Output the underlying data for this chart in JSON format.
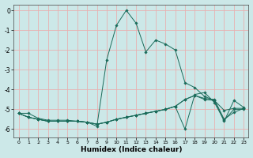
{
  "title": "",
  "xlabel": "Humidex (Indice chaleur)",
  "ylabel": "",
  "bg_color": "#cce8e8",
  "line_color": "#1a6b5a",
  "grid_color": "#e8b0b0",
  "xlim": [
    -0.5,
    23.5
  ],
  "ylim": [
    -6.4,
    0.3
  ],
  "yticks": [
    0,
    -1,
    -2,
    -3,
    -4,
    -5,
    -6
  ],
  "xticks": [
    0,
    1,
    2,
    3,
    4,
    5,
    6,
    7,
    8,
    9,
    10,
    11,
    12,
    13,
    14,
    15,
    16,
    17,
    18,
    19,
    20,
    21,
    22,
    23
  ],
  "lines": [
    {
      "x": [
        0,
        1,
        2,
        3,
        4,
        5,
        6,
        7,
        8,
        9,
        10,
        11,
        12,
        13,
        14,
        15,
        16,
        17,
        18,
        19,
        20,
        21,
        22,
        23
      ],
      "y": [
        -5.2,
        -5.2,
        -5.45,
        -5.55,
        -5.55,
        -5.55,
        -5.6,
        -5.65,
        -5.85,
        -2.5,
        -0.75,
        0.0,
        -0.65,
        -2.1,
        -1.5,
        -1.7,
        -2.0,
        -3.65,
        -3.9,
        -4.35,
        -4.55,
        -5.05,
        -4.95,
        -4.95
      ]
    },
    {
      "x": [
        0,
        1,
        2,
        3,
        4,
        5,
        6,
        7,
        8,
        9,
        10,
        11,
        12,
        13,
        14,
        15,
        16,
        17,
        18,
        19,
        20,
        21,
        22,
        23
      ],
      "y": [
        -5.2,
        -5.4,
        -5.5,
        -5.6,
        -5.6,
        -5.6,
        -5.6,
        -5.65,
        -5.75,
        -5.65,
        -5.5,
        -5.4,
        -5.3,
        -5.2,
        -5.1,
        -5.0,
        -4.85,
        -6.0,
        -4.25,
        -4.15,
        -4.65,
        -5.55,
        -5.0,
        -5.0
      ]
    },
    {
      "x": [
        0,
        1,
        2,
        3,
        4,
        5,
        6,
        7,
        8,
        9,
        10,
        11,
        12,
        13,
        14,
        15,
        16,
        17,
        18,
        19,
        20,
        21,
        22,
        23
      ],
      "y": [
        -5.2,
        -5.4,
        -5.5,
        -5.6,
        -5.6,
        -5.6,
        -5.6,
        -5.65,
        -5.75,
        -5.65,
        -5.5,
        -5.4,
        -5.3,
        -5.2,
        -5.1,
        -5.0,
        -4.85,
        -4.5,
        -4.3,
        -4.5,
        -4.55,
        -5.6,
        -4.55,
        -4.9
      ]
    },
    {
      "x": [
        0,
        1,
        2,
        3,
        4,
        5,
        6,
        7,
        8,
        9,
        10,
        11,
        12,
        13,
        14,
        15,
        16,
        17,
        18,
        19,
        20,
        21,
        22,
        23
      ],
      "y": [
        -5.2,
        -5.4,
        -5.5,
        -5.6,
        -5.6,
        -5.6,
        -5.6,
        -5.65,
        -5.75,
        -5.65,
        -5.5,
        -5.4,
        -5.3,
        -5.2,
        -5.1,
        -5.0,
        -4.85,
        -4.5,
        -4.3,
        -4.45,
        -4.5,
        -5.5,
        -5.15,
        -4.95
      ]
    }
  ]
}
